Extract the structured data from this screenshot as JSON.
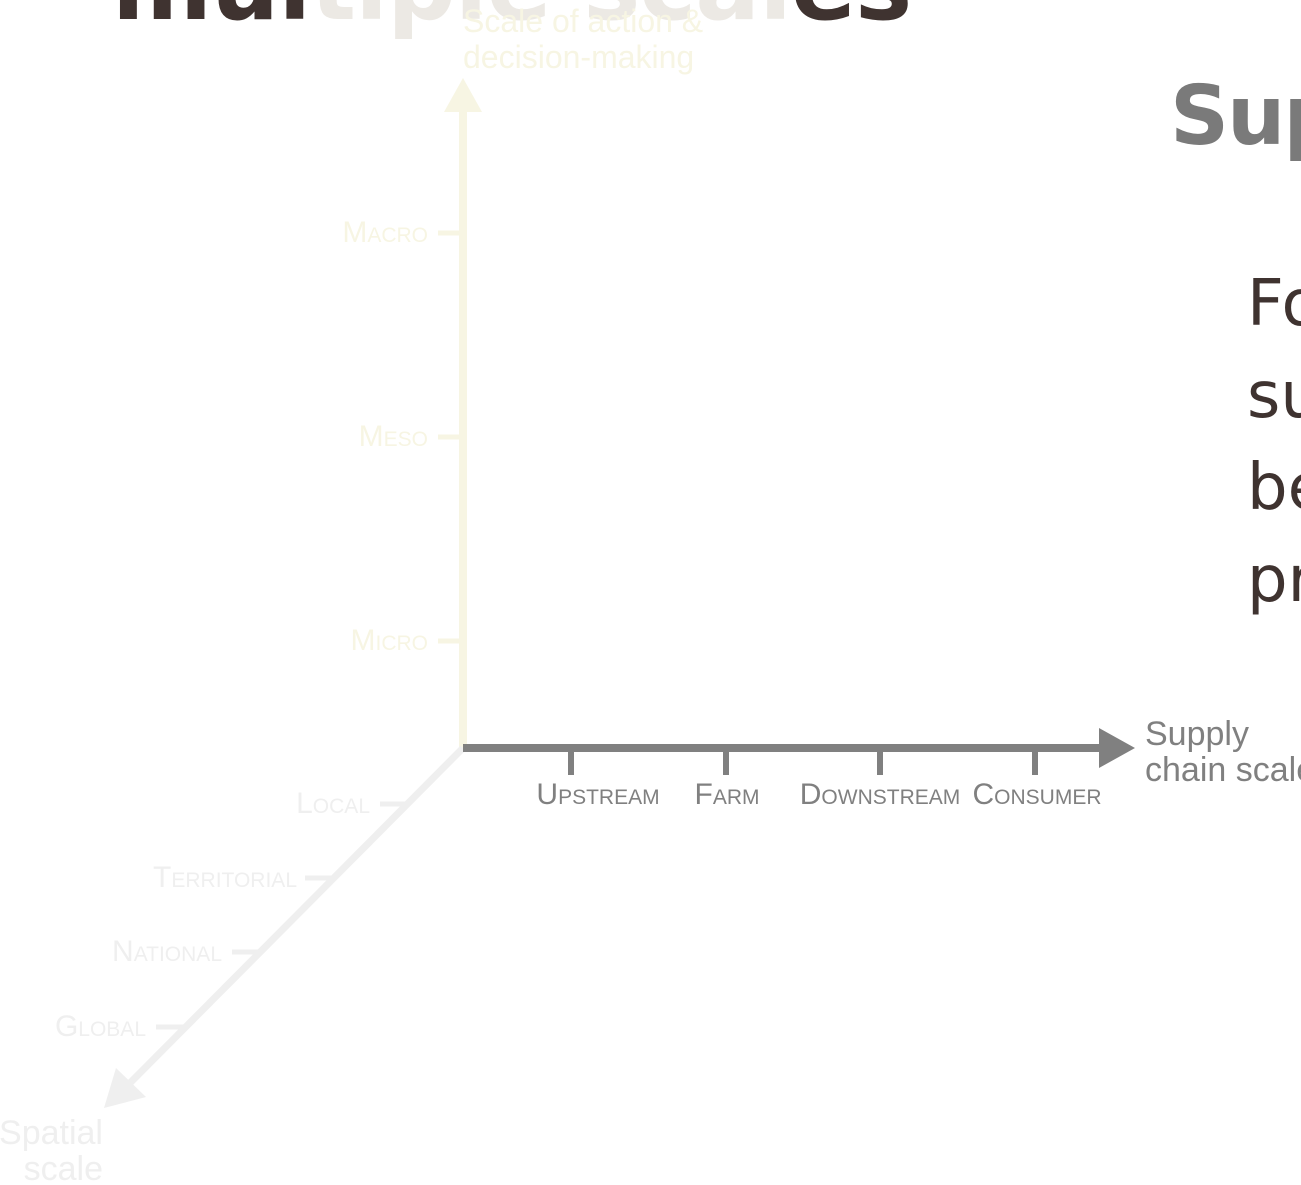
{
  "slide": {
    "title_visible": "mul",
    "title_faded": "tiple scal",
    "title_end": "es",
    "section_title": "Sup",
    "body_lines": [
      "Fo",
      "su",
      "be",
      "pr"
    ]
  },
  "diagram": {
    "vertical_axis": {
      "label_lines": [
        "Scale of action &",
        "decision-making"
      ],
      "ticks": [
        "Macro",
        "Meso",
        "Micro"
      ],
      "color": "#f7f5e3"
    },
    "horizontal_axis": {
      "label_lines": [
        "Supply",
        "chain scale"
      ],
      "ticks": [
        "Upstream",
        "Farm",
        "Downstream",
        "Consumer"
      ],
      "color": "#808080"
    },
    "diagonal_axis": {
      "label_lines": [
        "Spatial",
        "scale"
      ],
      "ticks": [
        "Local",
        "Territorial",
        "National",
        "Global"
      ],
      "color": "#efefef"
    }
  }
}
